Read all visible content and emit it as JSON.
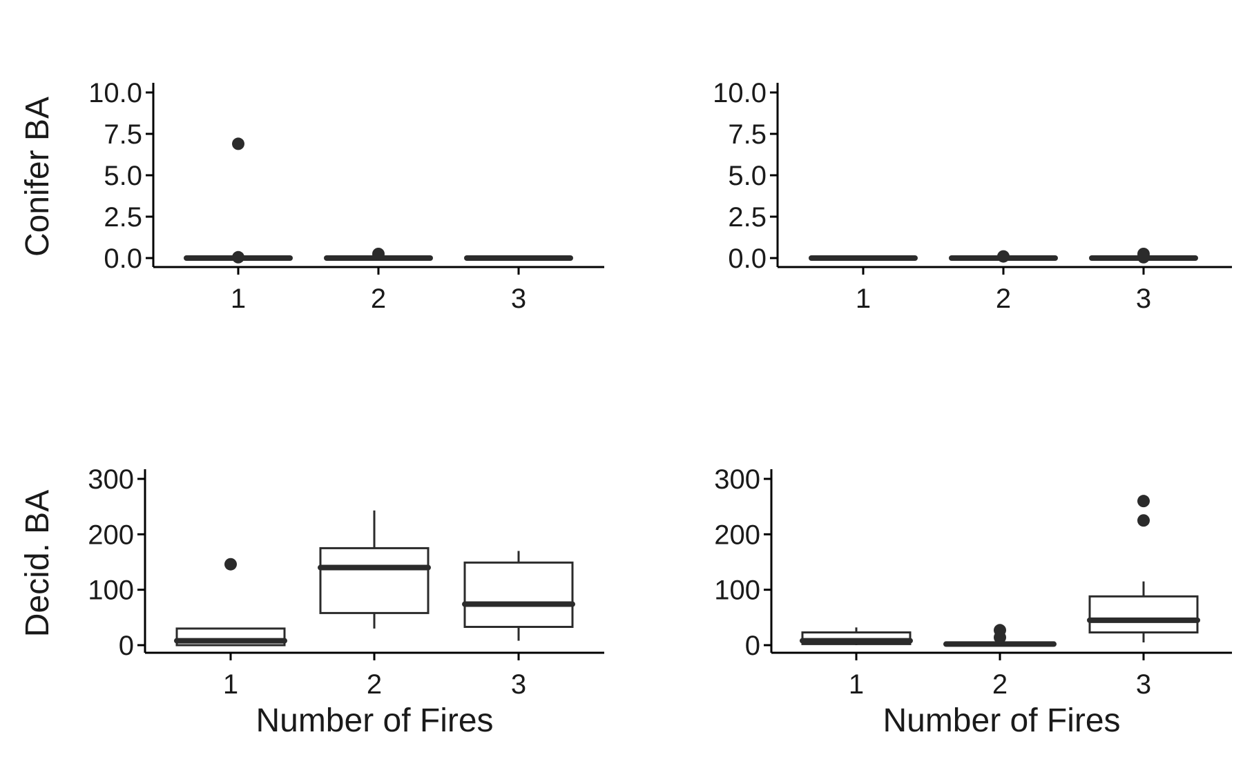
{
  "chart_data": [
    {
      "type": "boxplot",
      "panel": "top-left",
      "xlabel": "",
      "ylabel": "Conifer BA",
      "categories": [
        "1",
        "2",
        "3"
      ],
      "ylim": [
        0,
        10
      ],
      "yticks": [
        "0.0",
        "2.5",
        "5.0",
        "7.5",
        "10.0"
      ],
      "boxes": [
        {
          "category": "1",
          "min": 0,
          "q1": 0,
          "median": 0,
          "q3": 0,
          "max": 0,
          "outliers": [
            6.9,
            0.05
          ]
        },
        {
          "category": "2",
          "min": 0,
          "q1": 0,
          "median": 0,
          "q3": 0,
          "max": 0,
          "outliers": [
            0.25
          ]
        },
        {
          "category": "3",
          "min": 0,
          "q1": 0,
          "median": 0,
          "q3": 0,
          "max": 0,
          "outliers": []
        }
      ]
    },
    {
      "type": "boxplot",
      "panel": "top-right",
      "xlabel": "",
      "ylabel": "",
      "categories": [
        "1",
        "2",
        "3"
      ],
      "ylim": [
        0,
        10
      ],
      "yticks": [
        "0.0",
        "2.5",
        "5.0",
        "7.5",
        "10.0"
      ],
      "boxes": [
        {
          "category": "1",
          "min": 0,
          "q1": 0,
          "median": 0,
          "q3": 0,
          "max": 0,
          "outliers": []
        },
        {
          "category": "2",
          "min": 0,
          "q1": 0,
          "median": 0,
          "q3": 0,
          "max": 0,
          "outliers": [
            0.1
          ]
        },
        {
          "category": "3",
          "min": 0,
          "q1": 0,
          "median": 0,
          "q3": 0,
          "max": 0,
          "outliers": [
            0.25,
            0.05
          ]
        }
      ]
    },
    {
      "type": "boxplot",
      "panel": "bottom-left",
      "xlabel": "Number of Fires",
      "ylabel": "Decid. BA",
      "categories": [
        "1",
        "2",
        "3"
      ],
      "ylim": [
        0,
        300
      ],
      "yticks": [
        "0",
        "100",
        "200",
        "300"
      ],
      "boxes": [
        {
          "category": "1",
          "min": 0,
          "q1": 0,
          "median": 8,
          "q3": 30,
          "max": 30,
          "outliers": [
            146
          ]
        },
        {
          "category": "2",
          "min": 30,
          "q1": 58,
          "median": 140,
          "q3": 175,
          "max": 243,
          "outliers": []
        },
        {
          "category": "3",
          "min": 8,
          "q1": 33,
          "median": 74,
          "q3": 149,
          "max": 170,
          "outliers": []
        }
      ]
    },
    {
      "type": "boxplot",
      "panel": "bottom-right",
      "xlabel": "Number of Fires",
      "ylabel": "",
      "categories": [
        "1",
        "2",
        "3"
      ],
      "ylim": [
        0,
        300
      ],
      "yticks": [
        "0",
        "100",
        "200",
        "300"
      ],
      "boxes": [
        {
          "category": "1",
          "min": 0,
          "q1": 2,
          "median": 8,
          "q3": 23,
          "max": 32,
          "outliers": []
        },
        {
          "category": "2",
          "min": 0,
          "q1": 0,
          "median": 2,
          "q3": 5,
          "max": 8,
          "outliers": [
            27,
            14
          ]
        },
        {
          "category": "3",
          "min": 5,
          "q1": 23,
          "median": 45,
          "q3": 88,
          "max": 115,
          "outliers": [
            260,
            225
          ]
        }
      ]
    }
  ]
}
